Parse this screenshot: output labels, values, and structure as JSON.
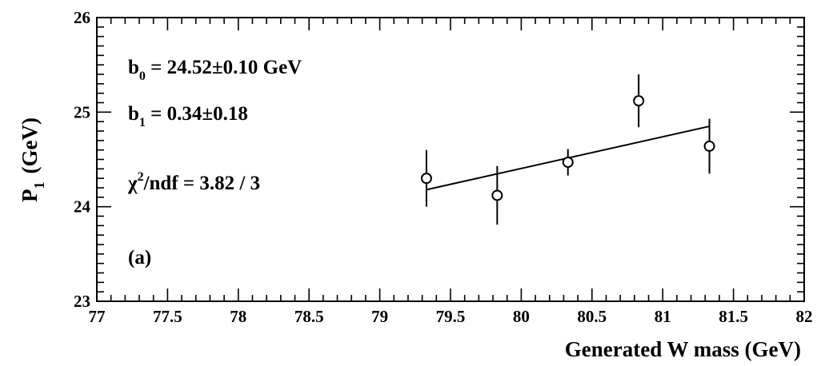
{
  "chart_data": {
    "type": "scatter",
    "xlabel": "Generated W mass (GeV)",
    "ylabel": {
      "main": "P",
      "sub": "1",
      "unit": "(GeV)"
    },
    "xlim": [
      77,
      82
    ],
    "ylim": [
      23,
      26
    ],
    "x_ticks": [
      "77",
      "77.5",
      "78",
      "78.5",
      "79",
      "79.5",
      "80",
      "80.5",
      "81",
      "81.5",
      "82"
    ],
    "y_ticks": [
      "23",
      "24",
      "25",
      "26"
    ],
    "points": [
      {
        "x": 79.33,
        "y": 24.3,
        "err": 0.3
      },
      {
        "x": 79.83,
        "y": 24.12,
        "err": 0.31
      },
      {
        "x": 80.33,
        "y": 24.47,
        "err": 0.14
      },
      {
        "x": 80.83,
        "y": 25.12,
        "err": 0.28
      },
      {
        "x": 81.33,
        "y": 24.64,
        "err": 0.29
      }
    ],
    "fit": {
      "x": [
        79.33,
        81.33
      ],
      "y": [
        24.18,
        24.85
      ]
    },
    "annotations": {
      "b0": {
        "main": "b",
        "sub": "0",
        "rest": " = 24.52±0.10 GeV"
      },
      "b1": {
        "main": "b",
        "sub": "1",
        "rest": " = 0.34±0.18"
      },
      "chi2": {
        "main": "χ",
        "sup": "2",
        "rest": "/ndf = 3.82 / 3"
      },
      "panel": "(a)"
    },
    "grid": false
  }
}
